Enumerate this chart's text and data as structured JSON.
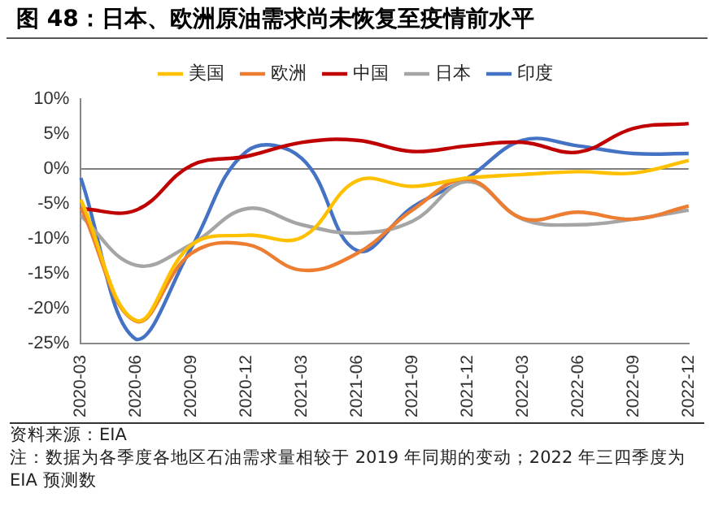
{
  "chart_data": {
    "type": "line",
    "title": "图 48：日本、欧洲原油需求尚未恢复至疫情前水平",
    "categories": [
      "2020-03",
      "2020-06",
      "2020-09",
      "2020-12",
      "2021-03",
      "2021-06",
      "2021-09",
      "2021-12",
      "2022-03",
      "2022-06",
      "2022-09",
      "2022-12"
    ],
    "series": [
      {
        "name": "美国",
        "color": "#ffc000",
        "values": [
          -4.4,
          -21.7,
          -10.9,
          -9.5,
          -9.8,
          -1.7,
          -2.5,
          -1.3,
          -0.8,
          -0.4,
          -0.6,
          1.2
        ]
      },
      {
        "name": "欧洲",
        "color": "#ed7d31",
        "values": [
          -5.5,
          -21.8,
          -12.1,
          -10.8,
          -14.5,
          -12.1,
          -5.9,
          -1.5,
          -7.1,
          -6.2,
          -7.2,
          -5.3
        ]
      },
      {
        "name": "中国",
        "color": "#c00000",
        "values": [
          -5.7,
          -5.9,
          0.5,
          1.8,
          3.8,
          4.1,
          2.5,
          3.3,
          3.8,
          2.4,
          5.8,
          6.5
        ]
      },
      {
        "name": "日本",
        "color": "#a5a5a5",
        "values": [
          -6.7,
          -13.8,
          -10.8,
          -5.7,
          -8.0,
          -9.2,
          -7.5,
          -1.8,
          -7.2,
          -8.0,
          -7.2,
          -5.9
        ]
      },
      {
        "name": "印度",
        "color": "#4472c4",
        "values": [
          -1.3,
          -24.4,
          -11.3,
          2.5,
          1.5,
          -11.7,
          -5.5,
          -1.3,
          4.1,
          3.3,
          2.2,
          2.2
        ]
      }
    ],
    "ylim": [
      -25,
      10
    ],
    "yticks": [
      {
        "value": -25,
        "label": "-25%"
      },
      {
        "value": -20,
        "label": "-20%"
      },
      {
        "value": -15,
        "label": "-15%"
      },
      {
        "value": -10,
        "label": "-10%"
      },
      {
        "value": -5,
        "label": "-5%"
      },
      {
        "value": 0,
        "label": "0%"
      },
      {
        "value": 5,
        "label": "5%"
      },
      {
        "value": 10,
        "label": "10%"
      }
    ],
    "ref_lines": [
      {
        "axis": "y",
        "value": 0,
        "color": "#7f7f7f"
      }
    ],
    "grid": false,
    "legend": "top",
    "marker": "none",
    "line_style": "solid",
    "annotations": [
      "资料来源：EIA",
      "注：数据为各季度各地区石油需求量相较于 2019 年同期的变动；2022 年三四季度为 EIA 预测数"
    ]
  }
}
